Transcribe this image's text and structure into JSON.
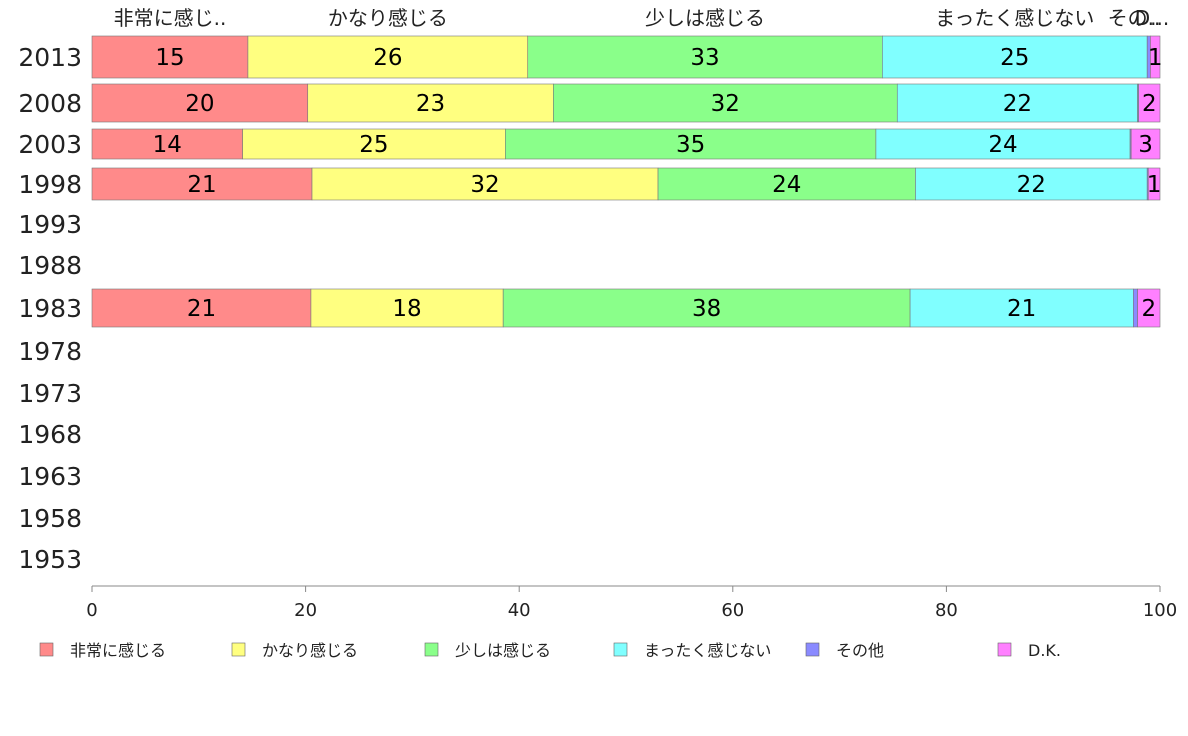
{
  "chart_data": {
    "type": "bar",
    "orientation": "horizontal",
    "stacked": true,
    "categories": [
      "2013",
      "2008",
      "2003",
      "1998",
      "1993",
      "1988",
      "1983",
      "1978",
      "1973",
      "1968",
      "1963",
      "1958",
      "1953"
    ],
    "series": [
      {
        "name": "非常に感じる",
        "color": "#ff8a8a",
        "values": [
          14.6,
          20.2,
          14.1,
          20.6,
          null,
          null,
          20.5,
          null,
          null,
          null,
          null,
          null,
          null
        ],
        "labels": [
          "15",
          "20",
          "14",
          "21",
          "",
          "",
          "21",
          "",
          "",
          "",
          "",
          "",
          ""
        ]
      },
      {
        "name": "かなり感じる",
        "color": "#ffff80",
        "values": [
          26.2,
          23.0,
          24.6,
          32.4,
          null,
          null,
          18.0,
          null,
          null,
          null,
          null,
          null,
          null
        ],
        "labels": [
          "26",
          "23",
          "25",
          "32",
          "",
          "",
          "18",
          "",
          "",
          "",
          "",
          "",
          ""
        ]
      },
      {
        "name": "少しは感じる",
        "color": "#8aff8a",
        "values": [
          33.2,
          32.2,
          34.7,
          24.1,
          null,
          null,
          38.1,
          null,
          null,
          null,
          null,
          null,
          null
        ],
        "labels": [
          "33",
          "32",
          "35",
          "24",
          "",
          "",
          "38",
          "",
          "",
          "",
          "",
          "",
          ""
        ]
      },
      {
        "name": "まったく感じない",
        "color": "#80ffff",
        "values": [
          24.8,
          22.5,
          23.8,
          21.7,
          null,
          null,
          20.9,
          null,
          null,
          null,
          null,
          null,
          null
        ],
        "labels": [
          "25",
          "22",
          "24",
          "22",
          "",
          "",
          "21",
          "",
          "",
          "",
          "",
          "",
          ""
        ]
      },
      {
        "name": "その他",
        "color": "#8a8aff",
        "values": [
          0.3,
          0.1,
          0.1,
          0.1,
          null,
          null,
          0.4,
          null,
          null,
          null,
          null,
          null,
          null
        ],
        "labels": [
          "",
          "",
          "",
          "",
          "",
          "",
          "",
          "",
          "",
          "",
          "",
          "",
          ""
        ]
      },
      {
        "name": "D.K.",
        "color": "#ff80ff",
        "values": [
          0.9,
          2.0,
          2.7,
          1.1,
          null,
          null,
          2.1,
          null,
          null,
          null,
          null,
          null,
          null
        ],
        "labels": [
          "1",
          "2",
          "3",
          "1",
          "",
          "",
          "2",
          "",
          "",
          "",
          "",
          "",
          ""
        ]
      }
    ],
    "top_labels": [
      "非常に感じ..",
      "かなり感じる",
      "少しは感じる",
      "まったく感じない",
      "その..",
      "D..."
    ],
    "xlim": [
      0,
      100
    ],
    "xticks": [
      "0",
      "20",
      "40",
      "60",
      "80",
      "100"
    ],
    "grid": false,
    "legend_position": "bottom"
  }
}
